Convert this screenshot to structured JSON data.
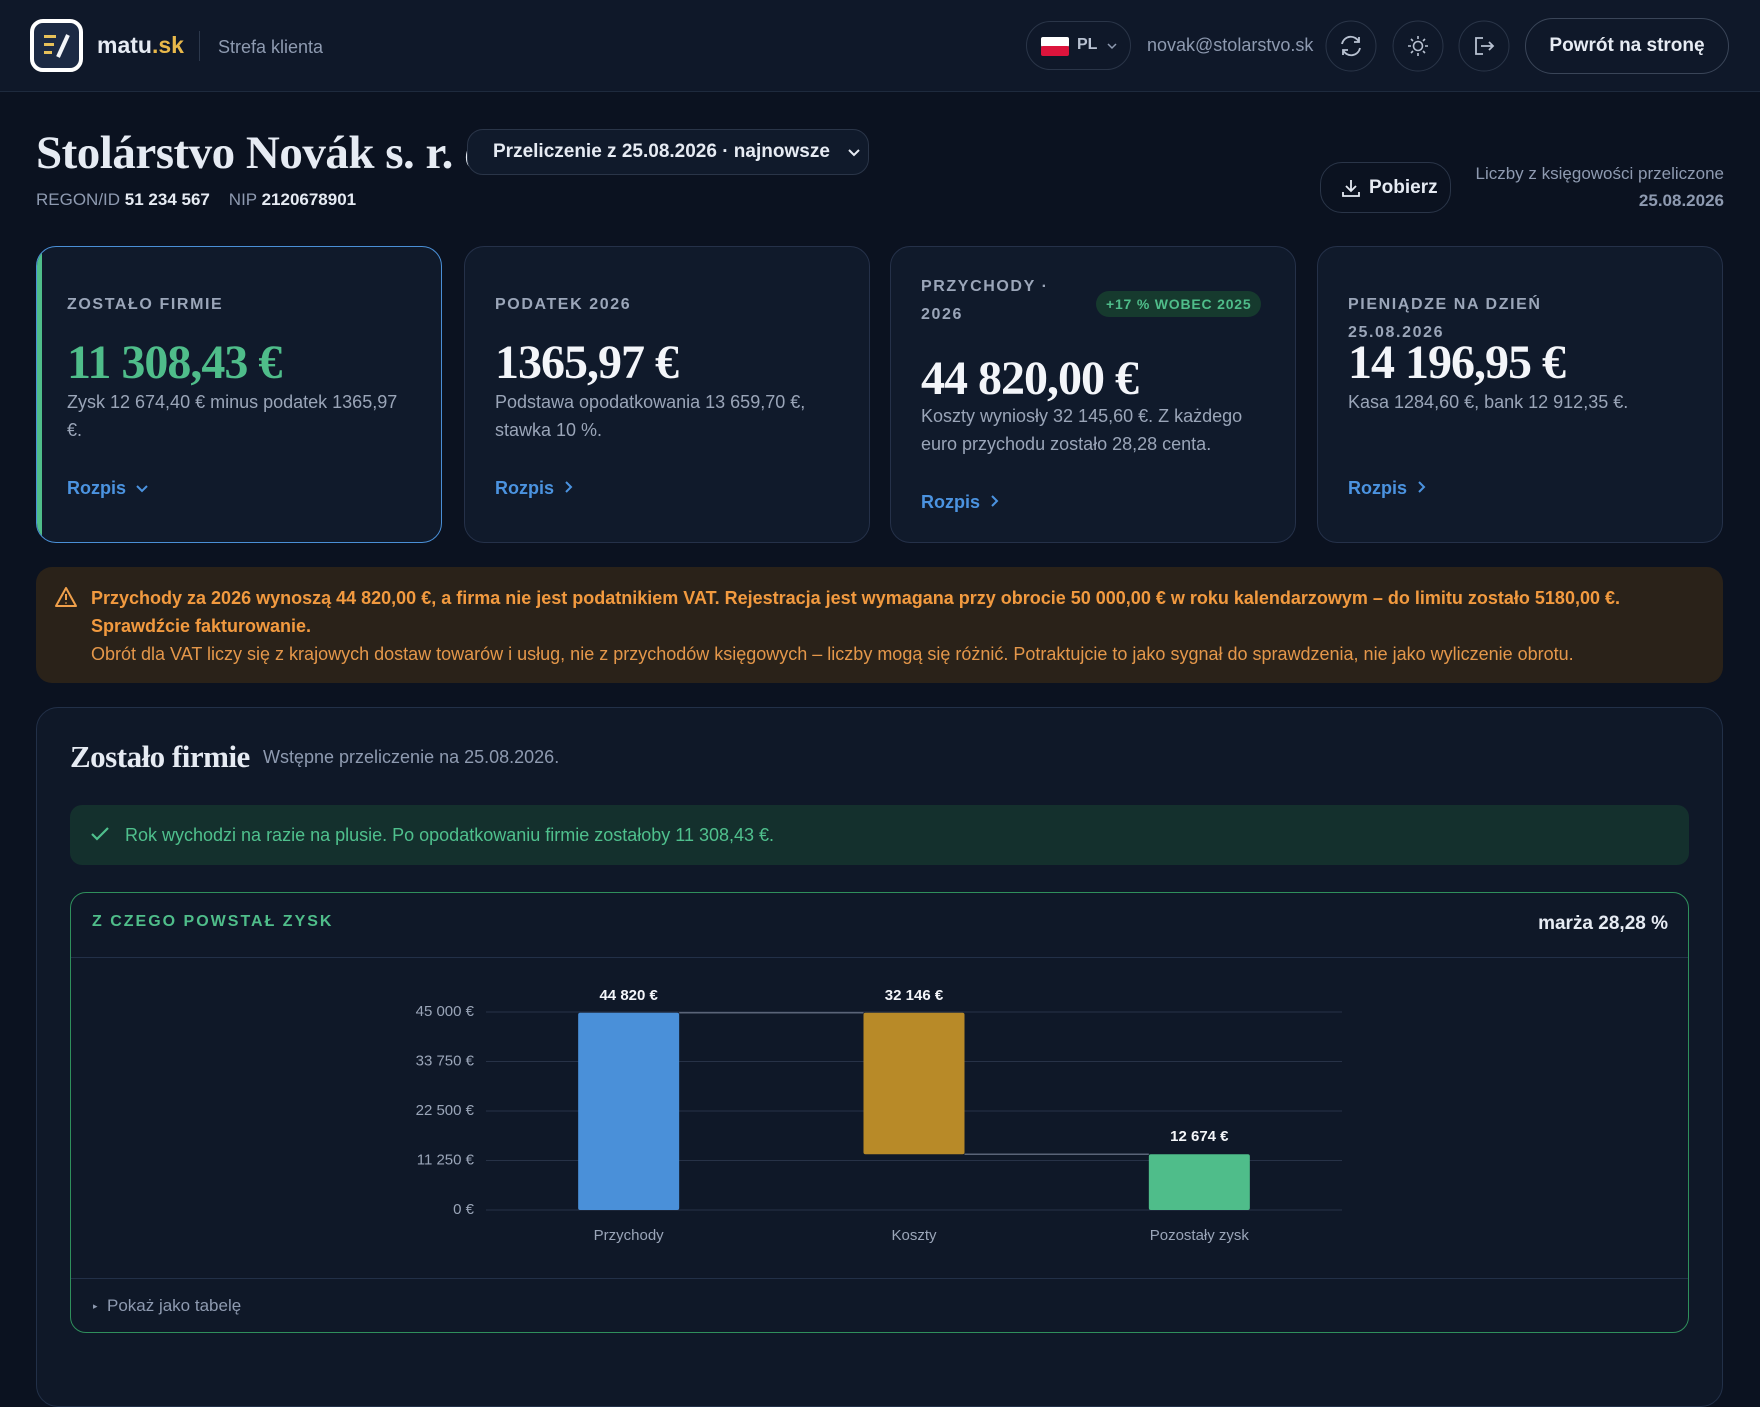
{
  "header": {
    "brand": "matu",
    "brand_suffix": ".sk",
    "area": "Strefa klienta",
    "language": "PL",
    "email": "novak@stolarstvo.sk",
    "back_button": "Powrót na stronę"
  },
  "company": {
    "name": "Stolárstvo Novák s. r. o.",
    "regon_label": "REGON/ID",
    "regon": "51 234 567",
    "nip_label": "NIP",
    "nip": "2120678901",
    "calculation_select": "Przeliczenie z 25.08.2026 · najnowsze",
    "download_button": "Pobierz",
    "note": "Liczby z księgowości przeliczone",
    "note_date": "25.08.2026"
  },
  "cards": [
    {
      "label": "ZOSTAŁO FIRMIE",
      "value": "11 308,43 €",
      "description": "Zysk 12 674,40 € minus podatek 1365,97 €.",
      "link": "Rozpis"
    },
    {
      "label": "PODATEK 2026",
      "value": "1365,97 €",
      "description": "Podstawa opodatkowania 13 659,70 €, stawka 10 %.",
      "link": "Rozpis"
    },
    {
      "label": "PRZYCHODY · 2026",
      "badge": "+17 % WOBEC 2025",
      "value": "44 820,00 €",
      "description": "Koszty wyniosły 32 145,60 €. Z każdego euro przychodu zostało 28,28 centa.",
      "link": "Rozpis"
    },
    {
      "label": "PIENIĄDZE NA DZIEŃ 25.08.2026",
      "value": "14 196,95 €",
      "description": "Kasa 1284,60 €, bank 12 912,35 €.",
      "link": "Rozpis"
    }
  ],
  "alert": {
    "headline": "Przychody za 2026 wynoszą 44 820,00 €, a firma nie jest podatnikiem VAT. Rejestracja jest wymagana przy obrocie 50 000,00 € w roku kalendarzowym – do limitu zostało 5180,00 €. Sprawdźcie fakturowanie.",
    "text": "Obrót dla VAT liczy się z krajowych dostaw towarów i usług, nie z przychodów księgowych – liczby mogą się różnić. Potraktujcie to jako sygnał do sprawdzenia, nie jako wyliczenie obrotu."
  },
  "section": {
    "title": "Zostało firmie",
    "subtitle": "Wstępne przeliczenie na 25.08.2026.",
    "success": "Rok wychodzi na razie na plusie. Po opodatkowaniu firmie zostałoby 11 308,43 €.",
    "chart_heading": "Z CZEGO POWSTAŁ ZYSK",
    "margin": "marża 28,28 %",
    "table_toggle": "Pokaż jako tabelę"
  },
  "chart_data": {
    "type": "waterfall",
    "categories": [
      "Przychody",
      "Koszty",
      "Pozostały zysk"
    ],
    "values": [
      44820,
      32146,
      12674
    ],
    "value_labels": [
      "44 820 €",
      "32 146 €",
      "12 674 €"
    ],
    "colors": [
      "#4a90d9",
      "#b88a28",
      "#4fbd8a"
    ],
    "ylim": [
      0,
      45000
    ],
    "yticks": [
      {
        "value": 0,
        "label": "0 €"
      },
      {
        "value": 11250,
        "label": "11 250 €"
      },
      {
        "value": 22500,
        "label": "22 500 €"
      },
      {
        "value": 33750,
        "label": "33 750 €"
      },
      {
        "value": 45000,
        "label": "45 000 €"
      }
    ],
    "grid": true
  }
}
